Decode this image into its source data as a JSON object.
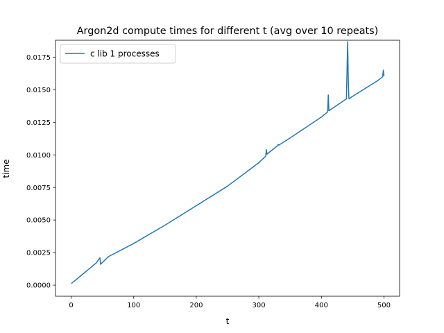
{
  "chart_data": {
    "type": "line",
    "title": "Argon2d compute times for different t (avg over 10 repeats)",
    "xlabel": "t",
    "ylabel": "time",
    "xlim": [
      -25,
      525
    ],
    "ylim": [
      -0.00085,
      0.0188
    ],
    "xticks": [
      0,
      100,
      200,
      300,
      400,
      500
    ],
    "xtick_labels": [
      "0",
      "100",
      "200",
      "300",
      "400",
      "500"
    ],
    "yticks": [
      0,
      0.0025,
      0.005,
      0.0075,
      0.01,
      0.0125,
      0.015,
      0.0175
    ],
    "ytick_labels": [
      "0.0000",
      "0.0025",
      "0.0050",
      "0.0075",
      "0.0100",
      "0.0125",
      "0.0150",
      "0.0175"
    ],
    "grid": false,
    "legend_position": "top-left",
    "series": [
      {
        "name": "c lib 1 processes",
        "color": "#1f77b4",
        "x": [
          1,
          20,
          40,
          46,
          47,
          48,
          60,
          100,
          150,
          200,
          250,
          300,
          311,
          312,
          313,
          314,
          330,
          331,
          332,
          350,
          400,
          410,
          411,
          412,
          413,
          414,
          440,
          441,
          442,
          443,
          444,
          450,
          460,
          470,
          480,
          490,
          498,
          499,
          500
        ],
        "y": [
          0.00015,
          0.0009,
          0.0017,
          0.0021,
          0.0016,
          0.00165,
          0.0022,
          0.0032,
          0.0046,
          0.0061,
          0.0076,
          0.0094,
          0.0099,
          0.0104,
          0.01005,
          0.0101,
          0.0107,
          0.0108,
          0.01075,
          0.0113,
          0.0129,
          0.0133,
          0.0146,
          0.0134,
          0.0134,
          0.01345,
          0.0143,
          0.0165,
          0.0187,
          0.0157,
          0.0143,
          0.0145,
          0.0148,
          0.0151,
          0.0154,
          0.0157,
          0.016,
          0.0165,
          0.0161
        ]
      }
    ]
  }
}
